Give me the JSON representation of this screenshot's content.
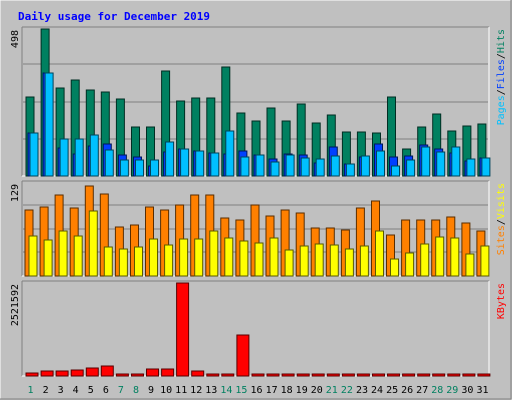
{
  "chart_data": [
    {
      "type": "bar",
      "title": "Daily usage for December 2019",
      "scale_label": "498",
      "ylim": [
        0,
        498
      ],
      "x": [
        "1",
        "2",
        "3",
        "4",
        "5",
        "6",
        "7",
        "8",
        "9",
        "10",
        "11",
        "12",
        "13",
        "14",
        "15",
        "16",
        "17",
        "18",
        "19",
        "20",
        "21",
        "22",
        "23",
        "24",
        "25",
        "26",
        "27",
        "28",
        "29",
        "30",
        "31"
      ],
      "weekend_days": [
        "1",
        "7",
        "8",
        "14",
        "15",
        "21",
        "22",
        "28",
        "29"
      ],
      "legend": [
        {
          "text": "Pages",
          "color": "#00c0ff"
        },
        {
          "text": "/",
          "color": "#000000"
        },
        {
          "text": "Files",
          "color": "#0040ff"
        },
        {
          "text": "/",
          "color": "#000000"
        },
        {
          "text": "Hits",
          "color": "#008060"
        }
      ],
      "series": [
        {
          "name": "Hits",
          "color": "#008060",
          "values": [
            267,
            498,
            298,
            325,
            292,
            286,
            260,
            166,
            166,
            355,
            255,
            264,
            264,
            369,
            213,
            188,
            232,
            188,
            245,
            178,
            205,
            150,
            148,
            146,
            266,
            91,
            166,
            211,
            154,
            169,
            177
          ]
        },
        {
          "name": "Files",
          "color": "#0040ff",
          "values": [
            145,
            350,
            94,
            76,
            100,
            108,
            70,
            66,
            34,
            82,
            90,
            86,
            79,
            74,
            83,
            71,
            58,
            75,
            71,
            45,
            98,
            42,
            63,
            110,
            65,
            69,
            106,
            90,
            79,
            50,
            61
          ]
        },
        {
          "name": "Pages",
          "color": "#00c0ff",
          "values": [
            145,
            350,
            127,
            125,
            139,
            88,
            53,
            53,
            54,
            115,
            90,
            86,
            79,
            151,
            64,
            71,
            47,
            70,
            61,
            59,
            68,
            42,
            68,
            86,
            35,
            55,
            97,
            81,
            98,
            56,
            61
          ]
        }
      ]
    },
    {
      "type": "bar",
      "scale_label": "129",
      "ylim": [
        0,
        129
      ],
      "x": [
        "1",
        "2",
        "3",
        "4",
        "5",
        "6",
        "7",
        "8",
        "9",
        "10",
        "11",
        "12",
        "13",
        "14",
        "15",
        "16",
        "17",
        "18",
        "19",
        "20",
        "21",
        "22",
        "23",
        "24",
        "25",
        "26",
        "27",
        "28",
        "29",
        "30",
        "31"
      ],
      "legend": [
        {
          "text": "Sites",
          "color": "#ff8000"
        },
        {
          "text": "/",
          "color": "#000000"
        },
        {
          "text": "Visits",
          "color": "#ffff00"
        }
      ],
      "series": [
        {
          "name": "Visits",
          "color": "#ffff00",
          "values": [
            56,
            50,
            63,
            55,
            90,
            40,
            37,
            40,
            51,
            43,
            51,
            51,
            63,
            53,
            48,
            46,
            53,
            36,
            42,
            45,
            43,
            38,
            41,
            62,
            23,
            32,
            45,
            54,
            53,
            31,
            41
          ]
        },
        {
          "name": "Sites",
          "color": "#ff8000",
          "values": [
            92,
            96,
            113,
            94,
            125,
            114,
            68,
            71,
            96,
            92,
            98,
            113,
            113,
            81,
            78,
            99,
            83,
            91,
            88,
            67,
            66,
            64,
            94,
            104,
            57,
            78,
            78,
            78,
            82,
            74,
            62
          ]
        }
      ]
    },
    {
      "type": "bar",
      "scale_label": "2521592",
      "ylim": [
        0,
        2521592
      ],
      "x": [
        "1",
        "2",
        "3",
        "4",
        "5",
        "6",
        "7",
        "8",
        "9",
        "10",
        "11",
        "12",
        "13",
        "14",
        "15",
        "16",
        "17",
        "18",
        "19",
        "20",
        "21",
        "22",
        "23",
        "24",
        "25",
        "26",
        "27",
        "28",
        "29",
        "30",
        "31"
      ],
      "legend": [
        {
          "text": "KBytes",
          "color": "#ff0000"
        }
      ],
      "series": [
        {
          "name": "KBytes",
          "color": "#ff0000",
          "values": [
            70000,
            130000,
            130000,
            160000,
            230000,
            260000,
            27000,
            27000,
            190000,
            190000,
            2521592,
            140000,
            27000,
            27000,
            1110000,
            27000,
            27000,
            27000,
            27000,
            27000,
            27000,
            27000,
            27000,
            27000,
            27000,
            27000,
            27000,
            27000,
            27000,
            27000,
            27000
          ]
        }
      ]
    }
  ]
}
